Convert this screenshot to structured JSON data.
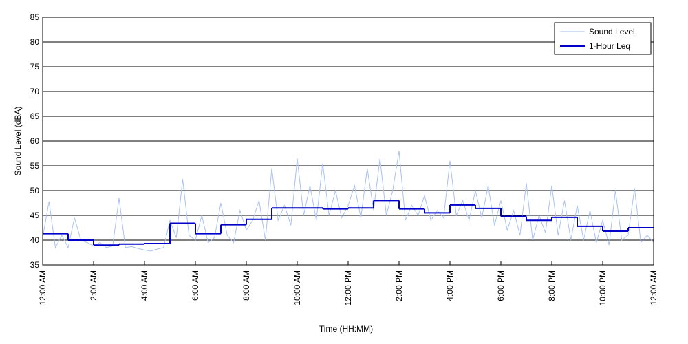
{
  "chart_data": {
    "type": "line",
    "xlabel": "Time (HH:MM)",
    "ylabel": "Sound Level (dBA)",
    "xlim": [
      0,
      24
    ],
    "ylim": [
      35,
      85
    ],
    "yticks": [
      35,
      40,
      45,
      50,
      55,
      60,
      65,
      70,
      75,
      80,
      85
    ],
    "xticks": [
      {
        "value": 0,
        "label": "12:00 AM"
      },
      {
        "value": 2,
        "label": "2:00 AM"
      },
      {
        "value": 4,
        "label": "4:00 AM"
      },
      {
        "value": 6,
        "label": "6:00 AM"
      },
      {
        "value": 8,
        "label": "8:00 AM"
      },
      {
        "value": 10,
        "label": "10:00 AM"
      },
      {
        "value": 12,
        "label": "12:00 PM"
      },
      {
        "value": 14,
        "label": "2:00 PM"
      },
      {
        "value": 16,
        "label": "4:00 PM"
      },
      {
        "value": 18,
        "label": "6:00 PM"
      },
      {
        "value": 20,
        "label": "8:00 PM"
      },
      {
        "value": 22,
        "label": "10:00 PM"
      },
      {
        "value": 24,
        "label": "12:00 AM"
      }
    ],
    "grid": true,
    "legend": "upper right",
    "series": [
      {
        "name": "Sound Level",
        "color": "#a9c1f2",
        "x": [
          0,
          0.25,
          0.5,
          0.75,
          1,
          1.25,
          1.5,
          1.75,
          2,
          2.25,
          2.5,
          2.75,
          3,
          3.25,
          3.5,
          3.75,
          4,
          4.25,
          4.5,
          4.75,
          5,
          5.25,
          5.5,
          5.75,
          6,
          6.25,
          6.5,
          6.75,
          7,
          7.25,
          7.5,
          7.75,
          8,
          8.25,
          8.5,
          8.75,
          9,
          9.25,
          9.5,
          9.75,
          10,
          10.25,
          10.5,
          10.75,
          11,
          11.25,
          11.5,
          11.75,
          12,
          12.25,
          12.5,
          12.75,
          13,
          13.25,
          13.5,
          13.75,
          14,
          14.25,
          14.5,
          14.75,
          15,
          15.25,
          15.5,
          15.75,
          16,
          16.25,
          16.5,
          16.75,
          17,
          17.25,
          17.5,
          17.75,
          18,
          18.25,
          18.5,
          18.75,
          19,
          19.25,
          19.5,
          19.75,
          20,
          20.25,
          20.5,
          20.75,
          21,
          21.25,
          21.5,
          21.75,
          22,
          22.25,
          22.5,
          22.75,
          23,
          23.25,
          23.5,
          23.75,
          24
        ],
        "values": [
          40.5,
          47.8,
          38.5,
          41,
          38.5,
          44.5,
          40,
          39.5,
          38.8,
          39.5,
          38.5,
          38.8,
          48.5,
          38.5,
          38.7,
          38.3,
          38,
          37.8,
          38.2,
          38.5,
          44,
          40.5,
          52.3,
          41,
          40,
          45,
          39.5,
          40.5,
          47.5,
          41,
          39.5,
          46,
          42,
          44,
          48,
          40,
          54.5,
          44,
          47,
          43,
          56.5,
          45,
          51,
          44,
          55.5,
          45,
          50,
          44.5,
          47,
          51,
          44.5,
          54.5,
          46,
          56.5,
          45,
          50,
          58,
          44,
          47,
          45,
          49,
          44,
          46,
          44.5,
          56,
          45,
          48,
          44,
          50,
          44.5,
          51,
          43,
          48,
          42,
          46,
          41,
          51.5,
          40,
          45,
          41.5,
          51,
          41,
          48,
          40,
          47,
          40,
          46,
          39.5,
          44,
          39,
          50,
          40,
          41,
          50.5,
          39.5,
          41,
          39.5
        ]
      },
      {
        "name": "1-Hour Leq",
        "color": "#0000cc",
        "step": "post",
        "x": [
          0,
          1,
          2,
          3,
          4,
          5,
          6,
          7,
          8,
          9,
          10,
          11,
          12,
          13,
          14,
          15,
          16,
          17,
          18,
          19,
          20,
          21,
          22,
          23
        ],
        "values": [
          41.3,
          40.0,
          39.0,
          39.2,
          39.3,
          43.4,
          41.3,
          43.1,
          44.2,
          46.5,
          46.5,
          46.3,
          46.5,
          48.0,
          46.3,
          45.5,
          47.1,
          46.4,
          44.8,
          44.0,
          44.6,
          42.8,
          41.8,
          42.5
        ]
      }
    ]
  }
}
